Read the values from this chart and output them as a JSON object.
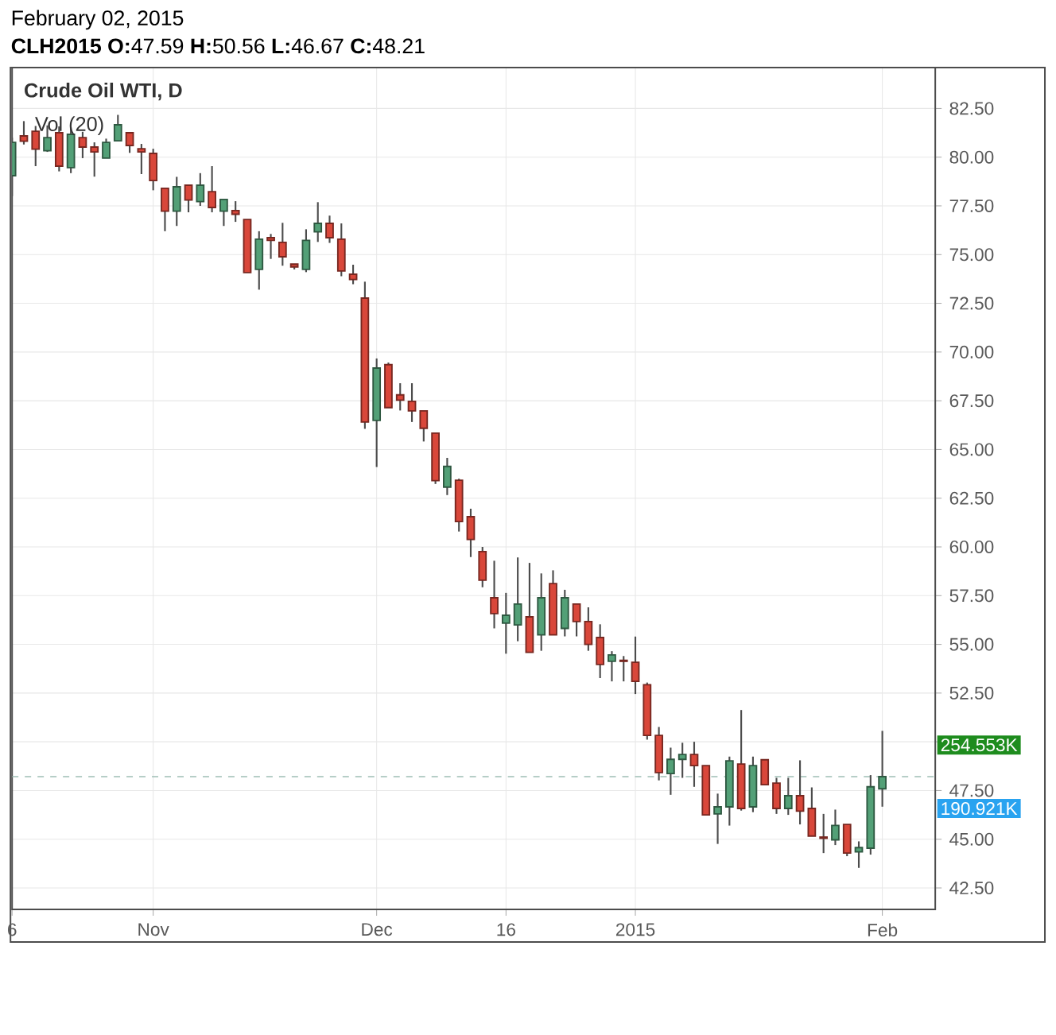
{
  "chart_data": {
    "type": "candlestick",
    "title": "February 02, 2015",
    "subtitle": "**CLH2015**  **O:**47.59  **H:**50.56  **L:**46.67  **C:**48.21",
    "annotations": [
      "Crude Oil WTI, D",
      "Vol (20)",
      "254.553K",
      "190.921K"
    ],
    "categories": [
      "6",
      null,
      null,
      null,
      null,
      null,
      null,
      null,
      null,
      null,
      null,
      null,
      "Nov",
      null,
      null,
      null,
      null,
      null,
      null,
      null,
      null,
      null,
      null,
      null,
      null,
      null,
      null,
      null,
      null,
      null,
      null,
      "Dec",
      null,
      null,
      null,
      null,
      null,
      null,
      null,
      null,
      null,
      null,
      "16",
      null,
      null,
      null,
      null,
      null,
      null,
      null,
      null,
      null,
      null,
      "2015",
      null,
      null,
      null,
      null,
      null,
      null,
      null,
      null,
      null,
      null,
      null,
      null,
      null,
      null,
      null,
      null,
      null,
      null,
      null,
      null,
      "Feb"
    ],
    "ohlc": [
      [
        79.05,
        81.0,
        78.0,
        80.76
      ],
      [
        81.09,
        81.85,
        80.65,
        80.82
      ],
      [
        81.33,
        81.6,
        79.54,
        80.41
      ],
      [
        80.33,
        81.63,
        80.27,
        81.0
      ],
      [
        81.25,
        81.58,
        79.27,
        79.54
      ],
      [
        79.46,
        81.52,
        79.18,
        81.17
      ],
      [
        81.0,
        81.3,
        79.95,
        80.52
      ],
      [
        80.52,
        80.76,
        79.0,
        80.27
      ],
      [
        79.95,
        80.95,
        79.95,
        80.76
      ],
      [
        80.84,
        82.17,
        80.84,
        81.66
      ],
      [
        81.25,
        81.25,
        80.22,
        80.6
      ],
      [
        80.43,
        80.68,
        79.13,
        80.27
      ],
      [
        80.19,
        80.43,
        78.3,
        78.8
      ],
      [
        78.4,
        78.4,
        76.2,
        77.23
      ],
      [
        77.23,
        78.99,
        76.47,
        78.48
      ],
      [
        78.56,
        78.56,
        77.17,
        77.8
      ],
      [
        77.72,
        79.18,
        77.5,
        78.56
      ],
      [
        78.23,
        79.54,
        77.17,
        77.42
      ],
      [
        77.23,
        77.83,
        76.47,
        77.83
      ],
      [
        77.26,
        77.74,
        76.68,
        77.07
      ],
      [
        76.8,
        76.8,
        74.08,
        74.08
      ],
      [
        74.24,
        76.2,
        73.2,
        75.79
      ],
      [
        75.87,
        76.06,
        74.78,
        75.73
      ],
      [
        75.63,
        76.63,
        74.43,
        74.89
      ],
      [
        74.51,
        74.51,
        74.24,
        74.37
      ],
      [
        74.24,
        76.3,
        74.1,
        75.73
      ],
      [
        76.17,
        77.69,
        75.65,
        76.6
      ],
      [
        76.6,
        77.0,
        75.6,
        75.87
      ],
      [
        75.79,
        76.6,
        73.89,
        74.16
      ],
      [
        73.99,
        74.48,
        73.48,
        73.72
      ],
      [
        72.77,
        73.61,
        66.06,
        66.41
      ],
      [
        66.49,
        69.67,
        64.1,
        69.18
      ],
      [
        69.35,
        69.46,
        67.15,
        67.15
      ],
      [
        67.8,
        68.4,
        67.0,
        67.53
      ],
      [
        67.47,
        68.4,
        66.41,
        66.98
      ],
      [
        66.98,
        66.98,
        65.41,
        66.09
      ],
      [
        65.84,
        65.84,
        63.23,
        63.4
      ],
      [
        63.07,
        64.57,
        62.66,
        64.13
      ],
      [
        63.42,
        63.5,
        60.79,
        61.3
      ],
      [
        61.55,
        61.96,
        59.48,
        60.38
      ],
      [
        59.76,
        60.0,
        57.93,
        58.29
      ],
      [
        57.39,
        59.29,
        55.82,
        56.58
      ],
      [
        56.09,
        57.64,
        54.52,
        56.49
      ],
      [
        56.0,
        59.46,
        55.16,
        57.07
      ],
      [
        56.41,
        59.18,
        54.59,
        54.59
      ],
      [
        55.49,
        58.64,
        54.67,
        57.39
      ],
      [
        58.12,
        58.8,
        55.49,
        55.49
      ],
      [
        55.82,
        57.8,
        55.41,
        57.39
      ],
      [
        57.07,
        57.07,
        55.41,
        56.17
      ],
      [
        56.17,
        56.9,
        54.67,
        55.0
      ],
      [
        55.35,
        56.03,
        53.27,
        53.97
      ],
      [
        54.13,
        54.65,
        53.1,
        54.46
      ],
      [
        54.18,
        54.4,
        53.1,
        54.13
      ],
      [
        54.08,
        55.4,
        52.45,
        53.1
      ],
      [
        52.93,
        53.04,
        50.11,
        50.33
      ],
      [
        50.33,
        50.76,
        48.02,
        48.42
      ],
      [
        48.37,
        49.7,
        47.28,
        49.1
      ],
      [
        49.1,
        49.95,
        48.15,
        49.35
      ],
      [
        49.35,
        50.0,
        47.69,
        48.78
      ],
      [
        48.78,
        48.78,
        46.25,
        46.25
      ],
      [
        46.3,
        47.34,
        44.76,
        46.66
      ],
      [
        46.66,
        49.24,
        45.7,
        49.02
      ],
      [
        48.86,
        51.63,
        46.47,
        46.58
      ],
      [
        46.66,
        49.24,
        46.39,
        48.78
      ],
      [
        49.08,
        49.08,
        47.8,
        47.8
      ],
      [
        47.88,
        48.15,
        46.3,
        46.58
      ],
      [
        46.58,
        48.15,
        46.25,
        47.23
      ],
      [
        47.23,
        49.05,
        45.76,
        46.44
      ],
      [
        46.58,
        47.66,
        45.16,
        45.16
      ],
      [
        45.11,
        46.3,
        44.29,
        45.05
      ],
      [
        44.97,
        46.52,
        44.7,
        45.71
      ],
      [
        45.76,
        45.76,
        44.13,
        44.29
      ],
      [
        44.35,
        44.89,
        43.53,
        44.57
      ],
      [
        44.54,
        48.29,
        44.21,
        47.69
      ],
      [
        47.59,
        50.56,
        46.67,
        48.21
      ]
    ],
    "colors": [
      "#53a077",
      "#d9473a",
      "#d9473a",
      "#53a077",
      "#d9473a",
      "#53a077",
      "#d9473a",
      "#d9473a",
      "#53a077",
      "#53a077",
      "#d9473a",
      "#d9473a",
      "#d9473a",
      "#d9473a",
      "#53a077",
      "#d9473a",
      "#53a077",
      "#d9473a",
      "#53a077",
      "#d9473a",
      "#d9473a",
      "#53a077",
      "#d9473a",
      "#d9473a",
      "#d9473a",
      "#53a077",
      "#53a077",
      "#d9473a",
      "#d9473a",
      "#d9473a",
      "#d9473a",
      "#53a077",
      "#d9473a",
      "#d9473a",
      "#d9473a",
      "#d9473a",
      "#d9473a",
      "#53a077",
      "#d9473a",
      "#d9473a",
      "#d9473a",
      "#d9473a",
      "#53a077",
      "#53a077",
      "#d9473a",
      "#53a077",
      "#d9473a",
      "#53a077",
      "#d9473a",
      "#d9473a",
      "#d9473a",
      "#53a077",
      "#d9473a",
      "#d9473a",
      "#d9473a",
      "#d9473a",
      "#53a077",
      "#53a077",
      "#d9473a",
      "#d9473a",
      "#53a077",
      "#53a077",
      "#d9473a",
      "#53a077",
      "#d9473a",
      "#d9473a",
      "#53a077",
      "#d9473a",
      "#d9473a",
      "#d9473a",
      "#53a077",
      "#d9473a",
      "#53a077",
      "#53a077",
      "#53a077"
    ],
    "ylim": [
      41.4,
      84.6
    ],
    "yticks": [
      {
        "value": 42.5,
        "label": "42.50"
      },
      {
        "value": 45,
        "label": "45.00"
      },
      {
        "value": 47.5,
        "label": "47.50"
      },
      {
        "value": 50,
        "label": null
      },
      {
        "value": 52.5,
        "label": "52.50"
      },
      {
        "value": 55,
        "label": "55.00"
      },
      {
        "value": 57.5,
        "label": "57.50"
      },
      {
        "value": 60,
        "label": "60.00"
      },
      {
        "value": 62.5,
        "label": "62.50"
      },
      {
        "value": 65,
        "label": "65.00"
      },
      {
        "value": 67.5,
        "label": "67.50"
      },
      {
        "value": 70,
        "label": "70.00"
      },
      {
        "value": 72.5,
        "label": "72.50"
      },
      {
        "value": 75,
        "label": "75.00"
      },
      {
        "value": 77.5,
        "label": "77.50"
      },
      {
        "value": 80,
        "label": "80.00"
      },
      {
        "value": 82.5,
        "label": "82.50"
      }
    ],
    "grid": true,
    "ref_lines": [
      {
        "axis": "y",
        "value": 48.21,
        "color": "#9fbfb5",
        "line_style": "dashed"
      }
    ]
  }
}
